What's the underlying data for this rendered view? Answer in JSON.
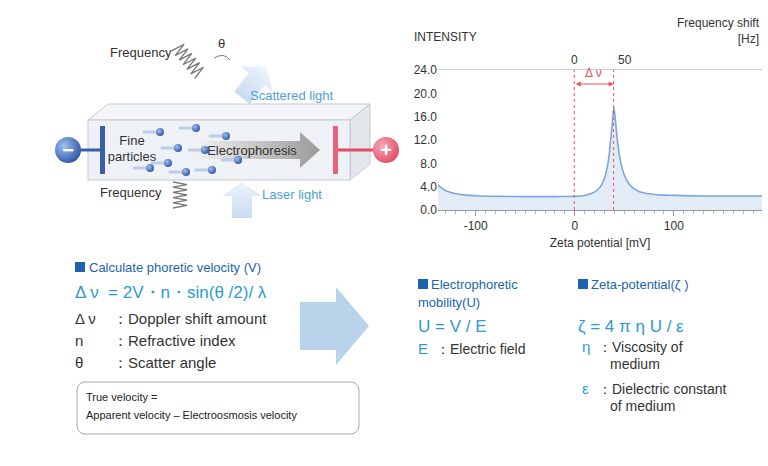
{
  "diagram": {
    "left_panel": {
      "scattered_frequency": "Frequency",
      "angle": "θ",
      "scattered_light": "Scattered light",
      "particles": [
        "Fine",
        "particles"
      ],
      "electrophoresis": "Electrophoresis",
      "laser_frequency": "Frequency",
      "laser_light": "Laser light",
      "cathode": "−",
      "anode": "+"
    },
    "velocity": {
      "heading": "Calculate phoretic velocity (V)",
      "formula": "Δ ν  = 2V・n・sin(θ /2)/ λ",
      "definitions": [
        [
          "Δ ν",
          "：Doppler shift amount"
        ],
        [
          "n",
          "：Refractive index"
        ],
        [
          "θ",
          "：Scatter angle"
        ]
      ],
      "note": [
        "True velocity =",
        "Apparent velocity – Electroosmosis velocity"
      ]
    },
    "mobility": {
      "heading": [
        "Electrophoretic",
        "mobility(U)"
      ],
      "formula": "U = V / E",
      "definitions": [
        [
          "E",
          "：Electric field"
        ]
      ]
    },
    "zeta": {
      "heading": "Zeta-potential(ζ )",
      "formula": "ζ = 4 π η U / ε",
      "definitions": [
        [
          "η",
          "：Viscosity of",
          "medium"
        ],
        [
          "ε",
          "：Dielectric constant",
          "of medium"
        ]
      ]
    }
  },
  "chart_data": {
    "type": "line",
    "xlabel": "Zeta potential [mV]",
    "ylabel": "INTENSITY",
    "x2label": [
      "Frequency shift",
      "[Hz]"
    ],
    "x": [
      -138,
      -134,
      -130,
      -125,
      -120,
      -110,
      -100,
      -80,
      -50,
      -20,
      0,
      10,
      18,
      24,
      28,
      31,
      34,
      36,
      38,
      39.5,
      41,
      43,
      46,
      50,
      55,
      62,
      70,
      85,
      100,
      130,
      160,
      189
    ],
    "values": [
      4.3,
      3.7,
      3.3,
      3.0,
      2.8,
      2.55,
      2.45,
      2.35,
      2.3,
      2.3,
      2.35,
      2.5,
      2.9,
      3.6,
      4.6,
      6.0,
      8.5,
      11.5,
      15.0,
      17.5,
      15.5,
      12.0,
      8.5,
      6.0,
      4.4,
      3.4,
      2.9,
      2.6,
      2.5,
      2.4,
      2.4,
      2.4
    ],
    "color": "#7ba7d9",
    "xlim": [
      -138,
      189
    ],
    "xticks": [
      -100,
      0,
      100
    ],
    "x2lim": [
      -135,
      186
    ],
    "x2ticks": [
      0,
      50
    ],
    "ylim": [
      0,
      24
    ],
    "yticks": [
      {
        "value": 0,
        "label": "0.0"
      },
      {
        "value": 4,
        "label": "4.0"
      },
      {
        "value": 8,
        "label": "8.0"
      },
      {
        "value": 12,
        "label": "12.0"
      },
      {
        "value": 16,
        "label": "16.0"
      },
      {
        "value": 20,
        "label": "20.0"
      },
      {
        "value": 24,
        "label": "24.0"
      }
    ],
    "grid": false,
    "annotations": [
      {
        "text": "Δ ν",
        "x_from": 0,
        "x_to": 39,
        "axis": "x2",
        "color": "#e8505b"
      }
    ]
  }
}
